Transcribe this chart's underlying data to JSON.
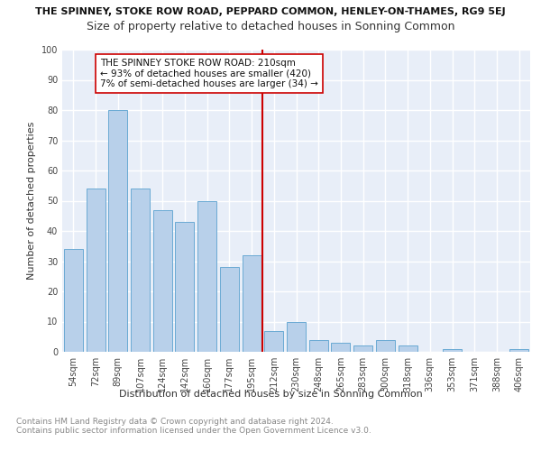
{
  "title": "THE SPINNEY, STOKE ROW ROAD, PEPPARD COMMON, HENLEY-ON-THAMES, RG9 5EJ",
  "subtitle": "Size of property relative to detached houses in Sonning Common",
  "xlabel": "Distribution of detached houses by size in Sonning Common",
  "ylabel": "Number of detached properties",
  "categories": [
    "54sqm",
    "72sqm",
    "89sqm",
    "107sqm",
    "124sqm",
    "142sqm",
    "160sqm",
    "177sqm",
    "195sqm",
    "212sqm",
    "230sqm",
    "248sqm",
    "265sqm",
    "283sqm",
    "300sqm",
    "318sqm",
    "336sqm",
    "353sqm",
    "371sqm",
    "388sqm",
    "406sqm"
  ],
  "values": [
    34,
    54,
    80,
    54,
    47,
    43,
    50,
    28,
    32,
    7,
    10,
    4,
    3,
    2,
    4,
    2,
    0,
    1,
    0,
    0,
    1
  ],
  "bar_color": "#b8d0ea",
  "bar_edge_color": "#6aaad4",
  "vline_color": "#cc0000",
  "annotation_text": "THE SPINNEY STOKE ROW ROAD: 210sqm\n← 93% of detached houses are smaller (420)\n7% of semi-detached houses are larger (34) →",
  "annotation_box_color": "#cc0000",
  "ylim": [
    0,
    100
  ],
  "yticks": [
    0,
    10,
    20,
    30,
    40,
    50,
    60,
    70,
    80,
    90,
    100
  ],
  "background_color": "#e8eef8",
  "grid_color": "#ffffff",
  "footer_text": "Contains HM Land Registry data © Crown copyright and database right 2024.\nContains public sector information licensed under the Open Government Licence v3.0.",
  "title_fontsize": 8,
  "subtitle_fontsize": 9,
  "label_fontsize": 8,
  "tick_fontsize": 7,
  "annotation_fontsize": 7.5,
  "footer_fontsize": 6.5
}
